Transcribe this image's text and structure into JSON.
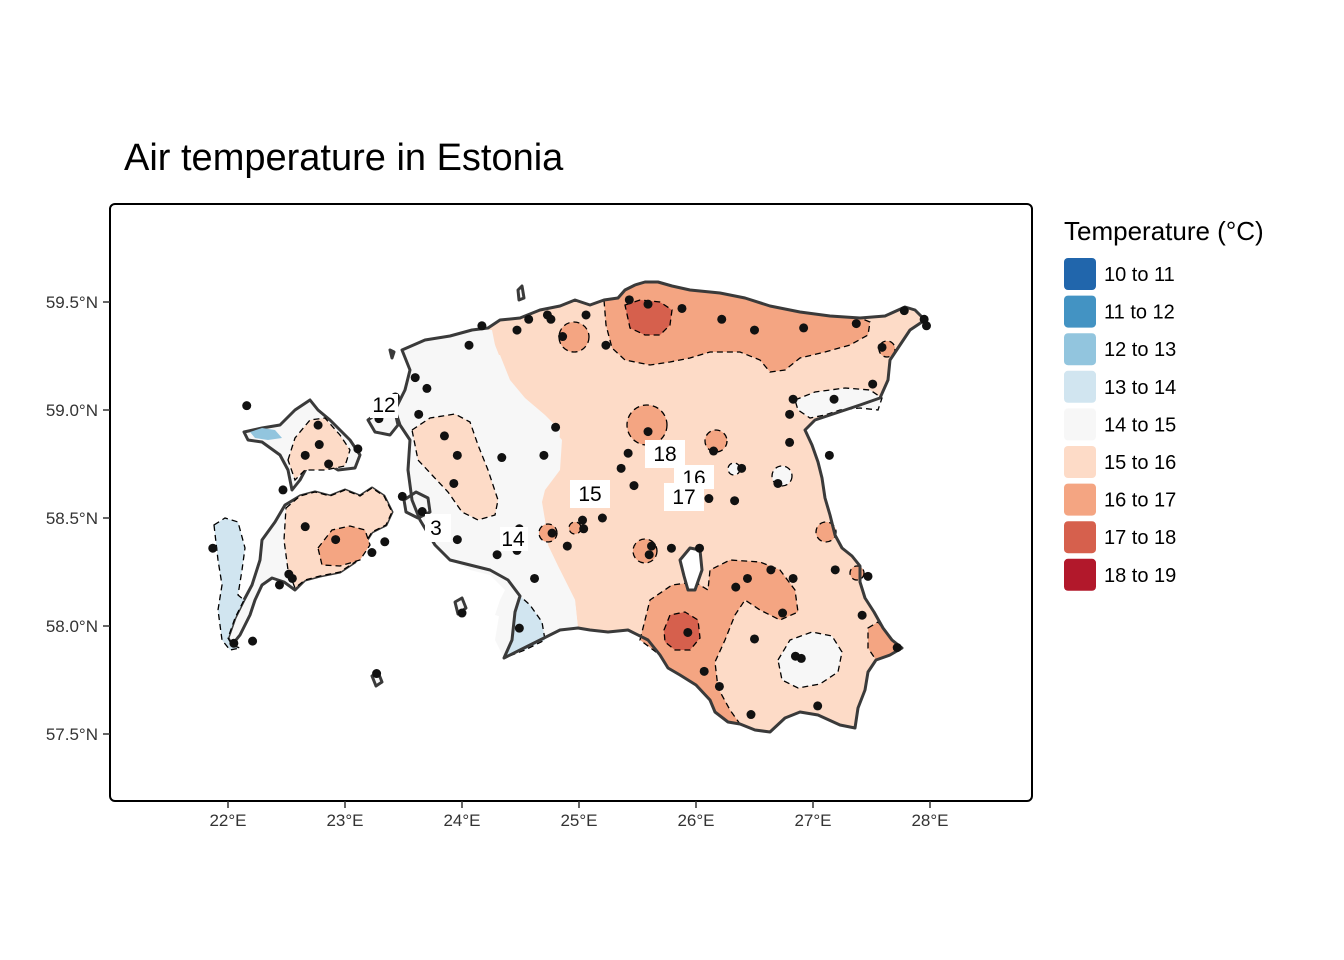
{
  "title": "Air temperature in Estonia",
  "x_axis": {
    "ticks": [
      "22°E",
      "23°E",
      "24°E",
      "25°E",
      "26°E",
      "27°E",
      "28°E"
    ]
  },
  "y_axis": {
    "ticks": [
      "59.5°N",
      "59.0°N",
      "58.5°N",
      "58.0°N",
      "57.5°N"
    ]
  },
  "legend": {
    "title": "Temperature (°C)",
    "items": [
      {
        "label": "10 to 11",
        "color": "#2166ac"
      },
      {
        "label": "11 to 12",
        "color": "#4393c3"
      },
      {
        "label": "12 to 13",
        "color": "#92c5de"
      },
      {
        "label": "13 to 14",
        "color": "#d1e5f0"
      },
      {
        "label": "14 to 15",
        "color": "#f7f7f7"
      },
      {
        "label": "15 to 16",
        "color": "#fddbc7"
      },
      {
        "label": "16 to 17",
        "color": "#f4a582"
      },
      {
        "label": "17 to 18",
        "color": "#d6604d"
      },
      {
        "label": "18 to 19",
        "color": "#b2182b"
      }
    ]
  },
  "contour_labels": [
    "18",
    "16",
    "17",
    "15",
    "3",
    "12",
    "14"
  ],
  "stations": [
    [
      22.16,
      59.02
    ],
    [
      22.77,
      58.93
    ],
    [
      23.11,
      58.82
    ],
    [
      23.43,
      59.06
    ],
    [
      23.63,
      58.98
    ],
    [
      23.85,
      58.88
    ],
    [
      24.06,
      59.3
    ],
    [
      24.17,
      59.39
    ],
    [
      24.47,
      59.37
    ],
    [
      24.76,
      59.42
    ],
    [
      24.86,
      59.34
    ],
    [
      25.06,
      59.44
    ],
    [
      25.43,
      59.51
    ],
    [
      25.59,
      59.49
    ],
    [
      25.88,
      59.47
    ],
    [
      26.22,
      59.42
    ],
    [
      26.5,
      59.37
    ],
    [
      26.92,
      59.38
    ],
    [
      27.37,
      59.4
    ],
    [
      27.78,
      59.46
    ],
    [
      27.95,
      59.42
    ],
    [
      27.97,
      59.39
    ],
    [
      27.59,
      59.29
    ],
    [
      27.51,
      59.12
    ],
    [
      27.18,
      59.05
    ],
    [
      26.83,
      59.05
    ],
    [
      26.8,
      58.98
    ],
    [
      26.8,
      58.85
    ],
    [
      27.14,
      58.79
    ],
    [
      26.39,
      58.73
    ],
    [
      26.15,
      58.81
    ],
    [
      25.59,
      58.9
    ],
    [
      26.7,
      58.66
    ],
    [
      25.99,
      58.7
    ],
    [
      26.11,
      58.59
    ],
    [
      26.33,
      58.58
    ],
    [
      25.42,
      58.8
    ],
    [
      25.36,
      58.73
    ],
    [
      24.8,
      58.92
    ],
    [
      24.7,
      58.79
    ],
    [
      24.34,
      58.78
    ],
    [
      23.93,
      58.66
    ],
    [
      23.96,
      58.79
    ],
    [
      22.78,
      58.84
    ],
    [
      22.66,
      58.79
    ],
    [
      22.47,
      58.63
    ],
    [
      22.66,
      58.46
    ],
    [
      22.92,
      58.4
    ],
    [
      23.23,
      58.34
    ],
    [
      23.34,
      58.39
    ],
    [
      23.49,
      58.6
    ],
    [
      23.66,
      58.53
    ],
    [
      23.96,
      58.4
    ],
    [
      24.3,
      58.33
    ],
    [
      24.47,
      58.35
    ],
    [
      24.62,
      58.22
    ],
    [
      24.77,
      58.43
    ],
    [
      25.04,
      58.45
    ],
    [
      24.9,
      58.37
    ],
    [
      25.2,
      58.5
    ],
    [
      25.62,
      58.37
    ],
    [
      25.79,
      58.36
    ],
    [
      26.03,
      58.36
    ],
    [
      25.6,
      58.33
    ],
    [
      26.64,
      58.26
    ],
    [
      26.44,
      58.22
    ],
    [
      26.34,
      58.18
    ],
    [
      26.83,
      58.22
    ],
    [
      26.74,
      58.06
    ],
    [
      27.19,
      58.26
    ],
    [
      27.47,
      58.23
    ],
    [
      27.42,
      58.05
    ],
    [
      27.72,
      57.9
    ],
    [
      26.85,
      57.86
    ],
    [
      26.9,
      57.85
    ],
    [
      26.5,
      57.94
    ],
    [
      25.93,
      57.97
    ],
    [
      26.07,
      57.79
    ],
    [
      26.2,
      57.72
    ],
    [
      26.47,
      57.59
    ],
    [
      27.04,
      57.63
    ],
    [
      22.21,
      57.93
    ],
    [
      22.05,
      57.92
    ],
    [
      22.55,
      58.22
    ],
    [
      22.44,
      58.19
    ],
    [
      21.87,
      58.36
    ],
    [
      22.52,
      58.24
    ],
    [
      24.49,
      57.99
    ],
    [
      24.0,
      58.06
    ],
    [
      23.27,
      57.78
    ],
    [
      23.29,
      58.96
    ],
    [
      22.86,
      58.75
    ],
    [
      24.49,
      58.45
    ],
    [
      25.03,
      58.49
    ],
    [
      25.47,
      58.65
    ],
    [
      24.57,
      59.42
    ],
    [
      23.6,
      59.15
    ],
    [
      23.7,
      59.1
    ],
    [
      25.23,
      59.3
    ],
    [
      24.73,
      59.44
    ]
  ]
}
